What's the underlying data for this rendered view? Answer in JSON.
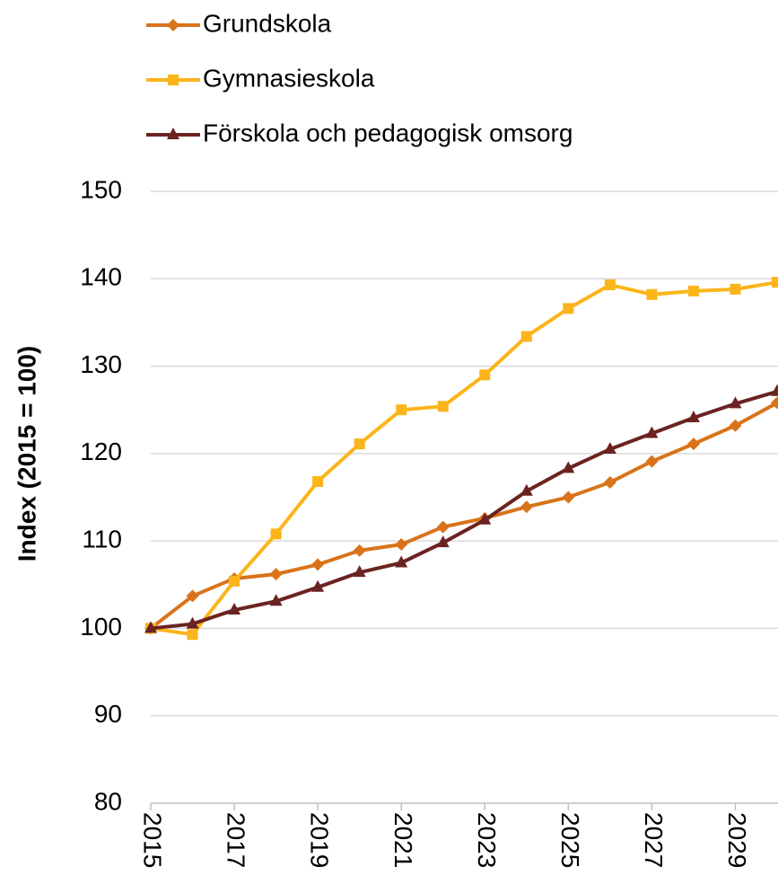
{
  "chart_data": {
    "type": "line",
    "y_label": "Index (2015 = 100)",
    "x": [
      2015,
      2016,
      2017,
      2018,
      2019,
      2020,
      2021,
      2022,
      2023,
      2024,
      2025,
      2026,
      2027,
      2028,
      2029,
      2030
    ],
    "series": [
      {
        "name": "Grundskola",
        "color": "#d9731a",
        "marker": "diamond",
        "values": [
          100,
          103.7,
          105.7,
          106.2,
          107.3,
          108.9,
          109.6,
          111.6,
          112.6,
          113.9,
          115.0,
          116.7,
          119.1,
          121.1,
          123.2,
          125.8
        ]
      },
      {
        "name": "Gymnasieskola",
        "color": "#fbb41a",
        "marker": "square",
        "values": [
          100,
          99.3,
          105.4,
          110.8,
          116.8,
          121.1,
          125.0,
          125.4,
          129.0,
          133.4,
          136.6,
          139.3,
          138.2,
          138.6,
          138.8,
          139.6
        ]
      },
      {
        "name": "Förskola och pedagogisk omsorg",
        "color": "#6b2322",
        "marker": "triangle",
        "values": [
          100,
          100.5,
          102.1,
          103.1,
          104.7,
          106.4,
          107.5,
          109.8,
          112.4,
          115.7,
          118.3,
          120.5,
          122.3,
          124.1,
          125.7,
          127.1
        ]
      }
    ],
    "xlim": [
      2015,
      2030
    ],
    "xticks": [
      2015,
      2017,
      2019,
      2021,
      2023,
      2025,
      2027,
      2029
    ],
    "ylim": [
      80,
      150
    ],
    "yticks": [
      80,
      90,
      100,
      110,
      120,
      130,
      140,
      150
    ],
    "grid": true,
    "legend": "top-left"
  }
}
